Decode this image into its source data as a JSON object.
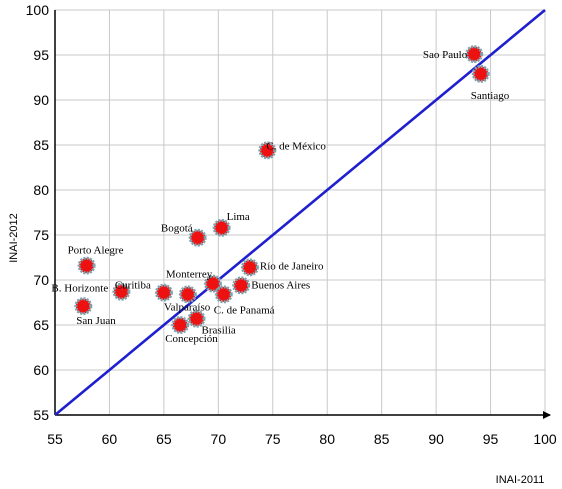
{
  "chart_data": {
    "type": "scatter",
    "title": "",
    "xlabel": "INAI-2011",
    "ylabel": "INAI-2012",
    "xlim": [
      55,
      100
    ],
    "ylim": [
      55,
      100
    ],
    "x_ticks": [
      "55",
      "60",
      "65",
      "70",
      "75",
      "80",
      "85",
      "90",
      "95",
      "100"
    ],
    "y_ticks": [
      "55",
      "60",
      "65",
      "70",
      "75",
      "80",
      "85",
      "90",
      "95",
      "100"
    ],
    "grid": true,
    "reference_line": {
      "type": "y=x",
      "from": [
        55,
        55
      ],
      "to": [
        100,
        100
      ],
      "color": "#1f1fd0"
    },
    "marker_color": "#ee1111",
    "marker_edge_color": "#7aa5b0",
    "points": [
      {
        "label": "Sao Paulo",
        "x": 93.5,
        "y": 95.1
      },
      {
        "label": "Santiago",
        "x": 94.1,
        "y": 92.9
      },
      {
        "label": "C. de México",
        "x": 74.5,
        "y": 84.4
      },
      {
        "label": "Lima",
        "x": 70.3,
        "y": 75.8
      },
      {
        "label": "Bogotá",
        "x": 68.1,
        "y": 74.7
      },
      {
        "label": "Porto Alegre",
        "x": 57.9,
        "y": 71.6
      },
      {
        "label": "Río de Janeiro",
        "x": 72.9,
        "y": 71.4
      },
      {
        "label": "Monterrey",
        "x": 69.5,
        "y": 69.6
      },
      {
        "label": "Buenos Aires",
        "x": 72.1,
        "y": 69.4
      },
      {
        "label": "Curitiba",
        "x": 65.0,
        "y": 68.6
      },
      {
        "label": "B. Horizonte",
        "x": 61.1,
        "y": 68.7
      },
      {
        "label": "Valparaíso",
        "x": 67.2,
        "y": 68.4
      },
      {
        "label": "C. de Panamá",
        "x": 70.5,
        "y": 68.4
      },
      {
        "label": "San Juan",
        "x": 57.6,
        "y": 67.1
      },
      {
        "label": "Brasilia",
        "x": 68.0,
        "y": 65.7
      },
      {
        "label": "Concepción",
        "x": 66.5,
        "y": 65.0
      }
    ]
  }
}
